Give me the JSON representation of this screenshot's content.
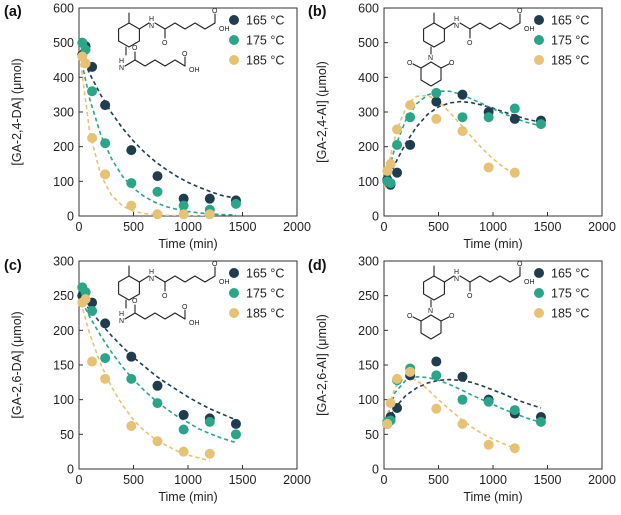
{
  "chart_data": [
    {
      "id": "a",
      "type": "scatter",
      "panel_label": "(a)",
      "xlabel": "Time (min)",
      "ylabel": "[GA-2,4-DA] (μmol)",
      "xlim": [
        0,
        2000
      ],
      "ylim": [
        0,
        600
      ],
      "xticks": [
        "0",
        "500",
        "1000",
        "1500",
        "2000"
      ],
      "yticks": [
        "0",
        "100",
        "200",
        "300",
        "400",
        "500",
        "600"
      ],
      "structure": "diamide",
      "series": [
        {
          "name": "165 °C",
          "color": "#1f3d4e",
          "x": [
            30,
            60,
            120,
            240,
            480,
            720,
            960,
            1200,
            1440
          ],
          "y": [
            465,
            490,
            430,
            320,
            190,
            115,
            50,
            50,
            45
          ],
          "fit_x": [
            0,
            100,
            200,
            300,
            400,
            500,
            600,
            700,
            800,
            900,
            1000,
            1100,
            1200,
            1300,
            1440
          ],
          "fit_y": [
            480,
            409,
            349,
            297,
            253,
            216,
            184,
            157,
            134,
            114,
            97,
            83,
            71,
            60,
            51
          ]
        },
        {
          "name": "175 °C",
          "color": "#2aa589",
          "x": [
            30,
            60,
            120,
            240,
            480,
            720,
            960,
            1200,
            1440
          ],
          "y": [
            500,
            480,
            360,
            210,
            95,
            70,
            30,
            18,
            35
          ],
          "fit_x": [
            0,
            100,
            200,
            300,
            400,
            500,
            600,
            700,
            800,
            900,
            1000,
            1100,
            1200,
            1300,
            1440
          ],
          "fit_y": [
            480,
            335,
            234,
            164,
            114,
            80,
            56,
            39,
            27,
            19,
            13,
            9,
            6,
            4,
            3
          ]
        },
        {
          "name": "185 °C",
          "color": "#e8c274",
          "x": [
            30,
            60,
            120,
            240,
            480,
            720,
            960,
            1200
          ],
          "y": [
            460,
            440,
            225,
            120,
            30,
            5,
            5,
            5
          ],
          "fit_x": [
            0,
            100,
            200,
            300,
            400,
            500,
            600,
            700,
            800,
            900,
            1000,
            1100,
            1200
          ],
          "fit_y": [
            480,
            238,
            118,
            59,
            29,
            14,
            7,
            4,
            2,
            1,
            0,
            0,
            0
          ]
        }
      ]
    },
    {
      "id": "b",
      "type": "scatter",
      "panel_label": "(b)",
      "xlabel": "Time (min)",
      "ylabel": "[GA-2,4-AI] (μmol)",
      "xlim": [
        0,
        2000
      ],
      "ylim": [
        0,
        600
      ],
      "xticks": [
        "0",
        "500",
        "1000",
        "1500",
        "2000"
      ],
      "yticks": [
        "0",
        "100",
        "200",
        "300",
        "400",
        "500",
        "600"
      ],
      "structure": "amide-imide",
      "series": [
        {
          "name": "165 °C",
          "color": "#1f3d4e",
          "x": [
            30,
            60,
            120,
            240,
            480,
            720,
            960,
            1200,
            1440
          ],
          "y": [
            105,
            90,
            125,
            205,
            330,
            350,
            300,
            280,
            275
          ],
          "fit_x": [
            0,
            100,
            200,
            300,
            400,
            500,
            600,
            700,
            800,
            900,
            1000,
            1100,
            1200,
            1300,
            1440
          ],
          "fit_y": [
            80,
            150,
            210,
            258,
            293,
            315,
            326,
            330,
            327,
            320,
            311,
            300,
            290,
            280,
            270
          ]
        },
        {
          "name": "175 °C",
          "color": "#2aa589",
          "x": [
            30,
            60,
            120,
            240,
            480,
            720,
            960,
            1200,
            1440
          ],
          "y": [
            100,
            95,
            205,
            285,
            355,
            285,
            285,
            310,
            265
          ],
          "fit_x": [
            0,
            100,
            200,
            300,
            400,
            500,
            600,
            700,
            800,
            900,
            1000,
            1100,
            1200,
            1300,
            1440
          ],
          "fit_y": [
            80,
            197,
            277,
            324,
            349,
            360,
            360,
            352,
            338,
            324,
            309,
            295,
            282,
            271,
            260
          ]
        },
        {
          "name": "185 °C",
          "color": "#e8c274",
          "x": [
            30,
            60,
            120,
            240,
            480,
            720,
            960,
            1200
          ],
          "y": [
            130,
            150,
            250,
            320,
            280,
            245,
            140,
            125
          ],
          "fit_x": [
            0,
            50,
            100,
            150,
            200,
            250,
            300,
            400,
            500,
            600,
            700,
            800,
            900,
            1000,
            1100,
            1200
          ],
          "fit_y": [
            80,
            160,
            225,
            275,
            310,
            333,
            345,
            348,
            330,
            300,
            265,
            230,
            195,
            165,
            140,
            120
          ]
        }
      ]
    },
    {
      "id": "c",
      "type": "scatter",
      "panel_label": "(c)",
      "xlabel": "Time (min)",
      "ylabel": "[GA-2,6-DA] (μmol)",
      "xlim": [
        0,
        2000
      ],
      "ylim": [
        0,
        300
      ],
      "xticks": [
        "0",
        "500",
        "1000",
        "1500",
        "2000"
      ],
      "yticks": [
        "0",
        "50",
        "100",
        "150",
        "200",
        "250",
        "300"
      ],
      "structure": "diamide",
      "series": [
        {
          "name": "165 °C",
          "color": "#1f3d4e",
          "x": [
            30,
            60,
            120,
            240,
            480,
            720,
            960,
            1200,
            1440
          ],
          "y": [
            250,
            255,
            240,
            210,
            162,
            120,
            78,
            73,
            65
          ],
          "fit_x": [
            0,
            100,
            200,
            300,
            400,
            500,
            600,
            700,
            800,
            900,
            1000,
            1100,
            1200,
            1300,
            1440
          ],
          "fit_y": [
            250,
            229,
            210,
            192,
            176,
            161,
            148,
            135,
            124,
            114,
            104,
            95,
            87,
            80,
            71
          ]
        },
        {
          "name": "175 °C",
          "color": "#2aa589",
          "x": [
            30,
            60,
            120,
            240,
            480,
            720,
            960,
            1200,
            1440
          ],
          "y": [
            262,
            255,
            228,
            160,
            130,
            95,
            57,
            68,
            50
          ],
          "fit_x": [
            0,
            100,
            200,
            300,
            400,
            500,
            600,
            700,
            800,
            900,
            1000,
            1100,
            1200,
            1300,
            1440
          ],
          "fit_y": [
            250,
            219,
            192,
            168,
            147,
            129,
            113,
            99,
            87,
            76,
            67,
            58,
            51,
            45,
            38
          ]
        },
        {
          "name": "185 °C",
          "color": "#e8c274",
          "x": [
            30,
            60,
            120,
            240,
            480,
            720,
            960,
            1200
          ],
          "y": [
            240,
            245,
            155,
            130,
            62,
            40,
            25,
            22
          ],
          "fit_x": [
            0,
            100,
            200,
            300,
            400,
            500,
            600,
            700,
            800,
            900,
            1000,
            1100,
            1200
          ],
          "fit_y": [
            250,
            194,
            151,
            118,
            92,
            71,
            55,
            43,
            34,
            26,
            20,
            16,
            12
          ]
        }
      ]
    },
    {
      "id": "d",
      "type": "scatter",
      "panel_label": "(d)",
      "xlabel": "Time (min)",
      "ylabel": "[GA-2,6-AI] (μmol)",
      "xlim": [
        0,
        2000
      ],
      "ylim": [
        0,
        300
      ],
      "xticks": [
        "0",
        "500",
        "1000",
        "1500",
        "2000"
      ],
      "yticks": [
        "0",
        "50",
        "100",
        "150",
        "200",
        "250",
        "300"
      ],
      "structure": "amide-imide",
      "series": [
        {
          "name": "165 °C",
          "color": "#1f3d4e",
          "x": [
            30,
            60,
            120,
            240,
            480,
            720,
            960,
            1200,
            1440
          ],
          "y": [
            65,
            75,
            88,
            135,
            155,
            133,
            100,
            80,
            75
          ],
          "fit_x": [
            0,
            100,
            200,
            300,
            400,
            500,
            600,
            700,
            800,
            900,
            1000,
            1100,
            1200,
            1300,
            1440
          ],
          "fit_y": [
            60,
            88,
            106,
            117,
            124,
            128,
            129,
            128,
            125,
            120,
            114,
            108,
            101,
            95,
            88
          ]
        },
        {
          "name": "175 °C",
          "color": "#2aa589",
          "x": [
            30,
            60,
            120,
            240,
            480,
            720,
            960,
            1200,
            1440
          ],
          "y": [
            68,
            70,
            128,
            145,
            135,
            100,
            97,
            85,
            68
          ],
          "fit_x": [
            0,
            100,
            200,
            300,
            400,
            500,
            600,
            700,
            800,
            900,
            1000,
            1100,
            1200,
            1300,
            1440
          ],
          "fit_y": [
            60,
            110,
            128,
            133,
            132,
            128,
            122,
            115,
            107,
            100,
            93,
            86,
            80,
            74,
            67
          ]
        },
        {
          "name": "185 °C",
          "color": "#e8c274",
          "x": [
            30,
            60,
            120,
            240,
            480,
            720,
            960,
            1200
          ],
          "y": [
            65,
            95,
            130,
            140,
            87,
            65,
            35,
            30
          ],
          "fit_x": [
            0,
            100,
            200,
            300,
            400,
            500,
            600,
            700,
            800,
            900,
            1000,
            1100,
            1200
          ],
          "fit_y": [
            60,
            118,
            133,
            128,
            115,
            100,
            86,
            73,
            61,
            51,
            43,
            36,
            30
          ]
        }
      ]
    }
  ]
}
